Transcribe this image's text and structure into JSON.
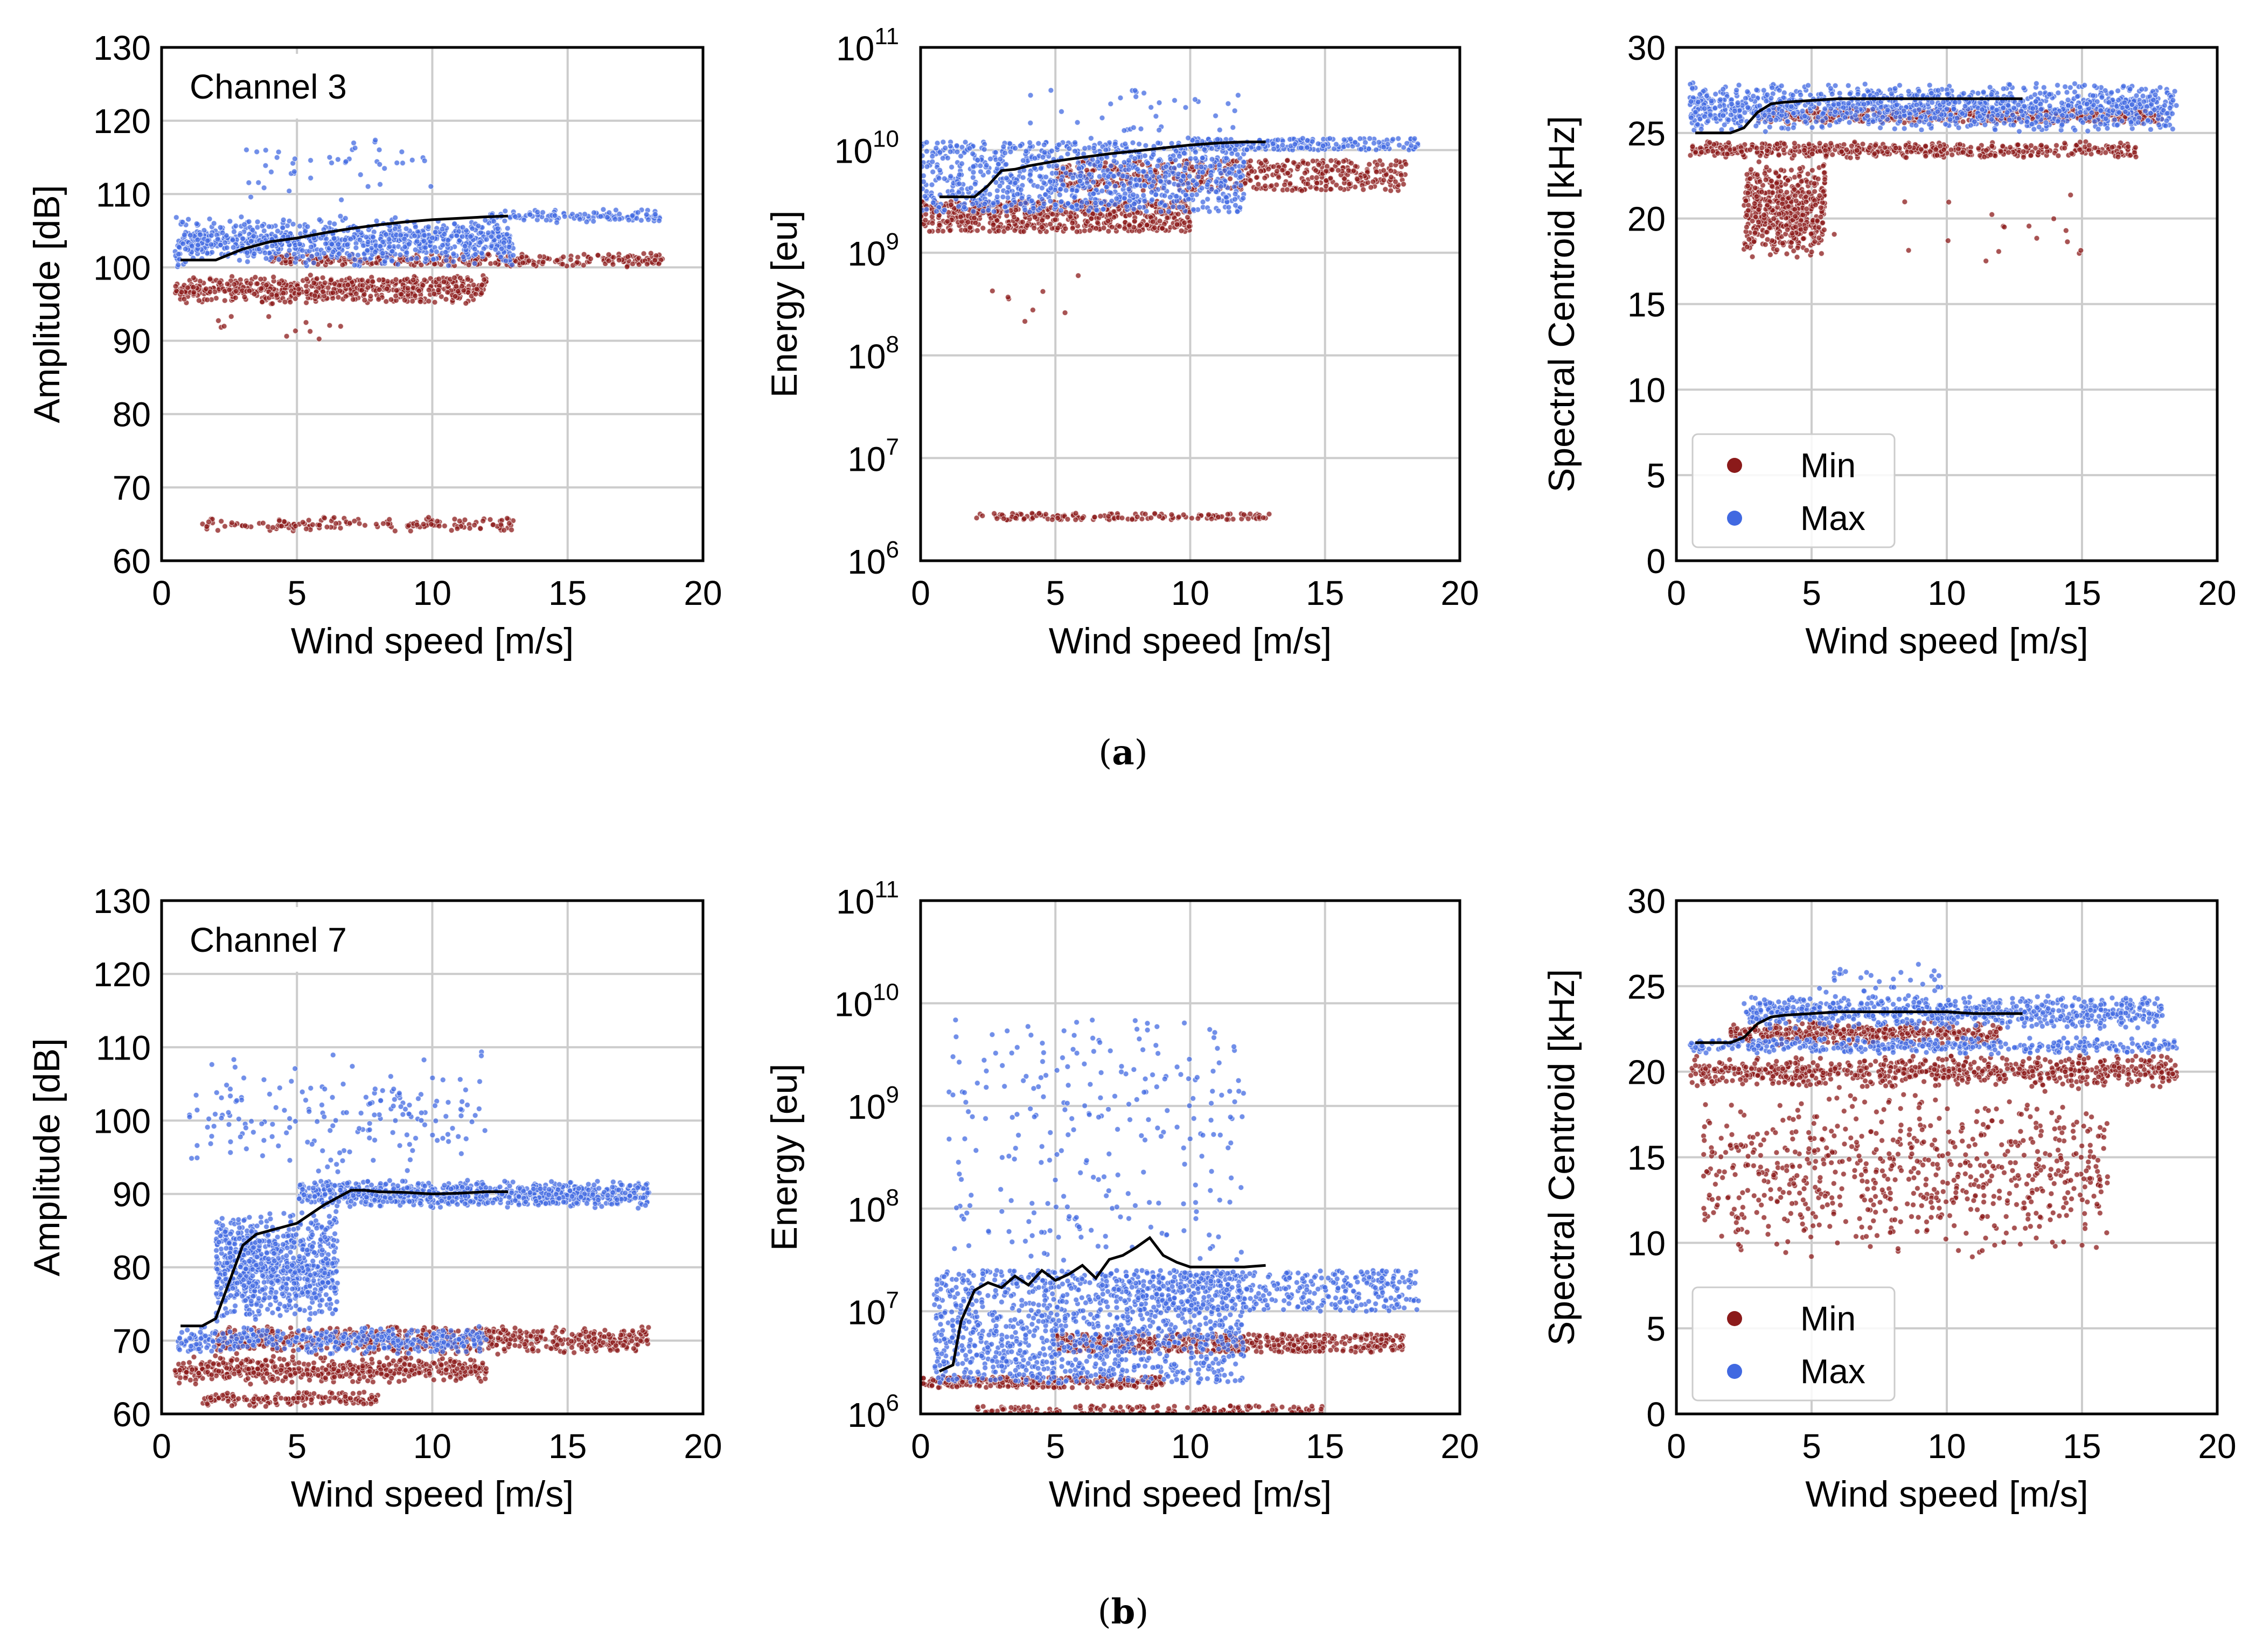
{
  "captions": {
    "a": "a",
    "b": "b"
  },
  "colors": {
    "min": "#8b1a1a",
    "max": "#4169e1",
    "median_line": "#000000",
    "grid": "#cccccc"
  },
  "legend": {
    "min_label": "Min",
    "max_label": "Max",
    "placement": "lower-left"
  },
  "chart_data": [
    {
      "id": "a-amplitude",
      "type": "scatter",
      "annotation": "Channel 3",
      "xlabel": "Wind speed [m/s]",
      "ylabel": "Amplitude [dB]",
      "xlim": [
        0,
        20
      ],
      "ylim": [
        60,
        130
      ],
      "yscale": "linear",
      "xticks": [
        "0",
        "5",
        "10",
        "15",
        "20"
      ],
      "yticks": [
        "60",
        "70",
        "80",
        "90",
        "100",
        "110",
        "120",
        "130"
      ],
      "grid": true,
      "legend": false,
      "series": [
        {
          "name": "Min",
          "clusters": [
            {
              "x": [
                0.5,
                12
              ],
              "y": [
                95,
                99
              ],
              "n": 600
            },
            {
              "x": [
                4,
                18.5
              ],
              "y": [
                100,
                102
              ],
              "n": 300
            },
            {
              "x": [
                1.5,
                13
              ],
              "y": [
                64,
                66
              ],
              "n": 160
            },
            {
              "x": [
                2,
                7
              ],
              "y": [
                90,
                94
              ],
              "n": 12
            }
          ]
        },
        {
          "name": "Max",
          "clusters": [
            {
              "x": [
                0.5,
                13
              ],
              "y": [
                100,
                107
              ],
              "n": 900
            },
            {
              "x": [
                12,
                18.5
              ],
              "y": [
                106,
                108
              ],
              "n": 120
            },
            {
              "x": [
                3,
                10
              ],
              "y": [
                108,
                119
              ],
              "n": 45
            }
          ]
        }
      ],
      "median": {
        "x": [
          0.7,
          2,
          3,
          4,
          5,
          6,
          7,
          8,
          9,
          10,
          11,
          12,
          12.8
        ],
        "y": [
          101,
          101,
          102.5,
          103.5,
          104,
          104.7,
          105.3,
          105.8,
          106.2,
          106.5,
          106.7,
          106.9,
          107
        ]
      }
    },
    {
      "id": "a-energy",
      "type": "scatter",
      "xlabel": "Wind speed [m/s]",
      "ylabel": "Energy [eu]",
      "xlim": [
        0,
        20
      ],
      "ylim": [
        1000000.0,
        100000000000.0
      ],
      "yscale": "log",
      "xticks": [
        "0",
        "5",
        "10",
        "15",
        "20"
      ],
      "ytick_exponents": [
        "6",
        "7",
        "8",
        "9",
        "10",
        "11"
      ],
      "ytick_base": "10",
      "grid": true,
      "legend": false,
      "series": [
        {
          "name": "Min",
          "clusters": [
            {
              "x": [
                0,
                10
              ],
              "y": [
                1600000000.0,
                3200000000.0
              ],
              "n": 600
            },
            {
              "x": [
                5,
                18
              ],
              "y": [
                4000000000.0,
                8000000000.0
              ],
              "n": 500
            },
            {
              "x": [
                2,
                13
              ],
              "y": [
                2500000.0,
                2900000.0
              ],
              "n": 150
            },
            {
              "x": [
                2.5,
                6
              ],
              "y": [
                200000000.0,
                800000000.0
              ],
              "n": 8
            }
          ]
        },
        {
          "name": "Max",
          "clusters": [
            {
              "x": [
                0,
                12
              ],
              "y": [
                2500000000.0,
                12000000000.0
              ],
              "n": 900
            },
            {
              "x": [
                10,
                18.5
              ],
              "y": [
                10000000000.0,
                13000000000.0
              ],
              "n": 200
            },
            {
              "x": [
                4,
                12
              ],
              "y": [
                13000000000.0,
                40000000000.0
              ],
              "n": 35
            }
          ]
        }
      ],
      "median": {
        "x": [
          0.7,
          2,
          2.5,
          3,
          3.5,
          4,
          5,
          6,
          7,
          8,
          9,
          10,
          11,
          12,
          12.8
        ],
        "y": [
          3500000000.0,
          3500000000.0,
          4500000000.0,
          6300000000.0,
          6500000000.0,
          7000000000.0,
          7800000000.0,
          8500000000.0,
          9200000000.0,
          9800000000.0,
          10500000000.0,
          11200000000.0,
          11700000000.0,
          12000000000.0,
          12000000000.0
        ]
      }
    },
    {
      "id": "a-centroid",
      "type": "scatter",
      "xlabel": "Wind speed [m/s]",
      "ylabel": "Spectral Centroid [kHz]",
      "xlim": [
        0,
        20
      ],
      "ylim": [
        0,
        30
      ],
      "yscale": "linear",
      "xticks": [
        "0",
        "5",
        "10",
        "15",
        "20"
      ],
      "yticks": [
        "0",
        "5",
        "10",
        "15",
        "20",
        "25",
        "30"
      ],
      "grid": true,
      "legend": true,
      "series": [
        {
          "name": "Min",
          "clusters": [
            {
              "x": [
                0.5,
                17
              ],
              "y": [
                23.5,
                24.5
              ],
              "n": 500
            },
            {
              "x": [
                3,
                18
              ],
              "y": [
                25.5,
                26.5
              ],
              "n": 500
            },
            {
              "x": [
                2.5,
                5.5
              ],
              "y": [
                17.5,
                23.5
              ],
              "n": 500
            },
            {
              "x": [
                5,
                15
              ],
              "y": [
                17,
                22
              ],
              "n": 20
            }
          ]
        },
        {
          "name": "Max",
          "clusters": [
            {
              "x": [
                0.5,
                18.5
              ],
              "y": [
                25,
                28
              ],
              "n": 1200
            }
          ]
        }
      ],
      "median": {
        "x": [
          0.7,
          2,
          2.5,
          3,
          3.5,
          4,
          5,
          6,
          7,
          8,
          9,
          10,
          11,
          12,
          12.8
        ],
        "y": [
          25,
          25,
          25.3,
          26.2,
          26.7,
          26.8,
          26.9,
          27,
          27,
          27,
          27,
          27,
          27,
          27,
          27
        ]
      }
    },
    {
      "id": "b-amplitude",
      "type": "scatter",
      "annotation": "Channel 7",
      "xlabel": "Wind speed [m/s]",
      "ylabel": "Amplitude [dB]",
      "xlim": [
        0,
        20
      ],
      "ylim": [
        60,
        130
      ],
      "yscale": "linear",
      "xticks": [
        "0",
        "5",
        "10",
        "15",
        "20"
      ],
      "yticks": [
        "60",
        "70",
        "80",
        "90",
        "100",
        "110",
        "120",
        "130"
      ],
      "grid": true,
      "legend": false,
      "series": [
        {
          "name": "Min",
          "clusters": [
            {
              "x": [
                0.5,
                12
              ],
              "y": [
                64,
                68
              ],
              "n": 500
            },
            {
              "x": [
                2,
                18
              ],
              "y": [
                68,
                72
              ],
              "n": 700
            },
            {
              "x": [
                1.5,
                8
              ],
              "y": [
                61,
                63
              ],
              "n": 150
            }
          ]
        },
        {
          "name": "Max",
          "clusters": [
            {
              "x": [
                0.5,
                12
              ],
              "y": [
                68,
                72
              ],
              "n": 400
            },
            {
              "x": [
                2,
                6.5
              ],
              "y": [
                72,
                88
              ],
              "n": 800
            },
            {
              "x": [
                5,
                18
              ],
              "y": [
                88,
                92
              ],
              "n": 800
            },
            {
              "x": [
                1,
                12
              ],
              "y": [
                92,
                110
              ],
              "n": 180
            }
          ]
        }
      ],
      "median": {
        "x": [
          0.7,
          1.5,
          2,
          2.5,
          3,
          3.5,
          4,
          5,
          6,
          6.5,
          7,
          7.5,
          8,
          9,
          10,
          11,
          12,
          12.8
        ],
        "y": [
          72,
          72,
          73,
          78,
          83,
          84.5,
          85,
          86,
          88.5,
          89.5,
          90.5,
          90.5,
          90.3,
          90.2,
          90,
          90.1,
          90.3,
          90.3
        ]
      }
    },
    {
      "id": "b-energy",
      "type": "scatter",
      "xlabel": "Wind speed [m/s]",
      "ylabel": "Energy [eu]",
      "xlim": [
        0,
        20
      ],
      "ylim": [
        1000000.0,
        100000000000.0
      ],
      "yscale": "log",
      "xticks": [
        "0",
        "5",
        "10",
        "15",
        "20"
      ],
      "ytick_exponents": [
        "6",
        "7",
        "8",
        "9",
        "10",
        "11"
      ],
      "ytick_base": "10",
      "grid": true,
      "legend": false,
      "series": [
        {
          "name": "Min",
          "clusters": [
            {
              "x": [
                0,
                9
              ],
              "y": [
                1800000.0,
                2300000.0
              ],
              "n": 300
            },
            {
              "x": [
                5,
                18
              ],
              "y": [
                4000000.0,
                6000000.0
              ],
              "n": 500
            },
            {
              "x": [
                2,
                15
              ],
              "y": [
                1000000.0,
                1200000.0
              ],
              "n": 150
            }
          ]
        },
        {
          "name": "Max",
          "clusters": [
            {
              "x": [
                0.5,
                12
              ],
              "y": [
                2000000.0,
                25000000.0
              ],
              "n": 1200
            },
            {
              "x": [
                8,
                18.5
              ],
              "y": [
                10000000.0,
                25000000.0
              ],
              "n": 400
            },
            {
              "x": [
                1,
                12
              ],
              "y": [
                30000000.0,
                7000000000.0
              ],
              "n": 250
            }
          ]
        }
      ],
      "median": {
        "x": [
          0.7,
          1.2,
          1.5,
          2,
          2.5,
          3,
          3.5,
          4,
          4.5,
          5,
          5.5,
          6,
          6.5,
          7,
          7.5,
          8,
          8.5,
          9,
          9.5,
          10,
          11,
          12,
          12.8
        ],
        "y": [
          2600000.0,
          3000000.0,
          8000000.0,
          16000000.0,
          19000000.0,
          17000000.0,
          22000000.0,
          18000000.0,
          25000000.0,
          20000000.0,
          23000000.0,
          28000000.0,
          21000000.0,
          32000000.0,
          35000000.0,
          42000000.0,
          52000000.0,
          35000000.0,
          30000000.0,
          27000000.0,
          27000000.0,
          27000000.0,
          28000000.0
        ]
      }
    },
    {
      "id": "b-centroid",
      "type": "scatter",
      "xlabel": "Wind speed [m/s]",
      "ylabel": "Spectral Centroid [kHz]",
      "xlim": [
        0,
        20
      ],
      "ylim": [
        0,
        30
      ],
      "yscale": "linear",
      "xticks": [
        "0",
        "5",
        "10",
        "15",
        "20"
      ],
      "yticks": [
        "0",
        "5",
        "10",
        "15",
        "20",
        "25",
        "30"
      ],
      "grid": true,
      "legend": true,
      "series": [
        {
          "name": "Min",
          "clusters": [
            {
              "x": [
                0.5,
                18.5
              ],
              "y": [
                19,
                21
              ],
              "n": 700
            },
            {
              "x": [
                2,
                12
              ],
              "y": [
                21.5,
                23
              ],
              "n": 400
            },
            {
              "x": [
                1,
                16
              ],
              "y": [
                9,
                19
              ],
              "n": 700
            }
          ]
        },
        {
          "name": "Max",
          "clusters": [
            {
              "x": [
                0.5,
                18.5
              ],
              "y": [
                21,
                22
              ],
              "n": 400
            },
            {
              "x": [
                2.5,
                18
              ],
              "y": [
                22.5,
                24.5
              ],
              "n": 700
            },
            {
              "x": [
                5,
                10
              ],
              "y": [
                24.5,
                26.5
              ],
              "n": 30
            }
          ]
        }
      ],
      "median": {
        "x": [
          0.7,
          2,
          2.5,
          3,
          3.5,
          4,
          5,
          6,
          7,
          8,
          9,
          10,
          11,
          12,
          12.8
        ],
        "y": [
          21.7,
          21.7,
          22,
          22.8,
          23.2,
          23.3,
          23.4,
          23.5,
          23.5,
          23.5,
          23.5,
          23.5,
          23.4,
          23.4,
          23.4
        ]
      }
    }
  ]
}
